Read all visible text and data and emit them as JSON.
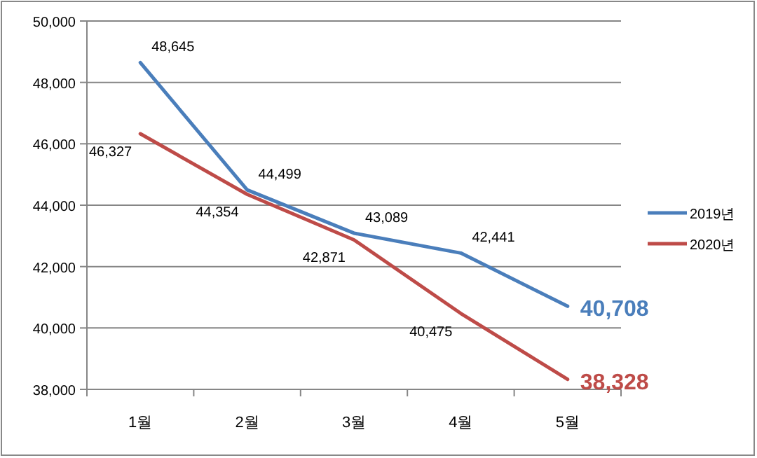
{
  "chart_data": {
    "type": "line",
    "categories": [
      "1월",
      "2월",
      "3월",
      "4월",
      "5월"
    ],
    "series": [
      {
        "name": "2019년",
        "color": "#4a7ebb",
        "values": [
          48645,
          44499,
          43089,
          42441,
          40708
        ],
        "value_labels": [
          "48,645",
          "44,499",
          "43,089",
          "42,441",
          "40,708"
        ]
      },
      {
        "name": "2020년",
        "color": "#be4b48",
        "values": [
          46327,
          44354,
          42871,
          40475,
          38328
        ],
        "value_labels": [
          "46,327",
          "44,354",
          "42,871",
          "40,475",
          "38,328"
        ]
      }
    ],
    "ylim": [
      38000,
      50000
    ],
    "yticks": [
      {
        "value": 38000,
        "label": "38,000"
      },
      {
        "value": 40000,
        "label": "40,000"
      },
      {
        "value": 42000,
        "label": "42,000"
      },
      {
        "value": 44000,
        "label": "44,000"
      },
      {
        "value": 46000,
        "label": "46,000"
      },
      {
        "value": 48000,
        "label": "48,000"
      },
      {
        "value": 50000,
        "label": "50,000"
      }
    ],
    "grid": "y",
    "legend": "right",
    "marker": "none",
    "line_style": "solid"
  }
}
